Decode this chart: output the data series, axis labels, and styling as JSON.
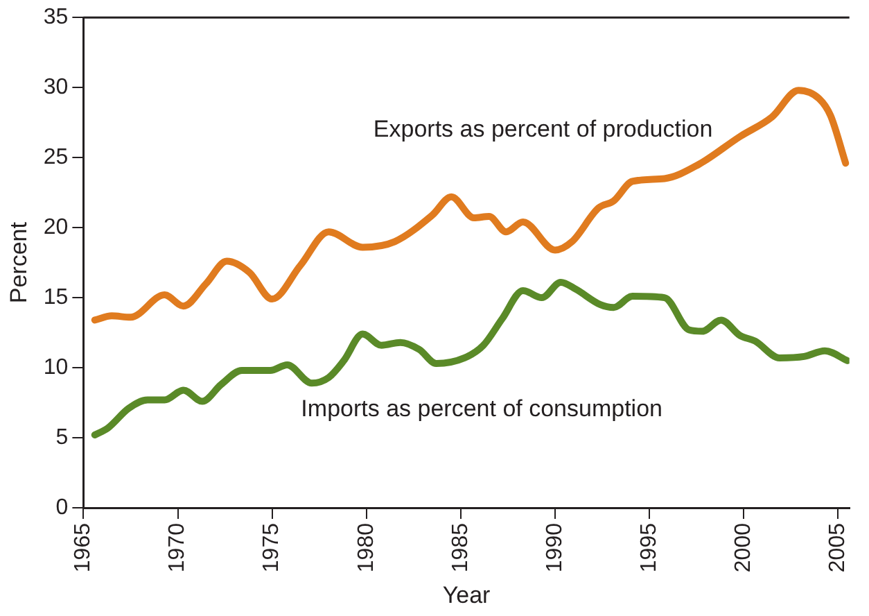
{
  "chart_data": {
    "type": "line",
    "xlabel": "Year",
    "ylabel": "Percent",
    "xlim": [
      1965,
      2005.6
    ],
    "xticks": [
      1965,
      1970,
      1975,
      1980,
      1985,
      1990,
      1995,
      2000,
      2005
    ],
    "ylim": [
      0,
      35
    ],
    "yticks": [
      0,
      5,
      10,
      15,
      20,
      25,
      30,
      35
    ],
    "grid": false,
    "legend": false,
    "marker": "none",
    "line_style": "solid",
    "series": [
      {
        "name": "Exports as percent of production",
        "color": "#e07b1f",
        "x": [
          1965.6,
          1966.5,
          1967.5,
          1969.3,
          1970.3,
          1971.5,
          1972.6,
          1973.8,
          1975,
          1976.5,
          1978,
          1979.8,
          1981.5,
          1983.5,
          1984.5,
          1985.7,
          1986.5,
          1987.4,
          1988.3,
          1990,
          1990.9,
          1992.3,
          1993.1,
          1994.1,
          1995.8,
          1997.6,
          1999.8,
          2001.5,
          2002.9,
          2004,
          2004.6,
          2005.4
        ],
        "values": [
          13.4,
          13.7,
          13.6,
          15.2,
          14.4,
          16,
          17.6,
          16.8,
          14.9,
          17.3,
          19.7,
          18.6,
          19,
          20.9,
          22.2,
          20.7,
          20.8,
          19.7,
          20.4,
          18.4,
          19,
          21.4,
          21.9,
          23.3,
          23.5,
          24.5,
          26.5,
          27.9,
          29.8,
          29.2,
          28,
          24.6
        ]
      },
      {
        "name": "Imports as percent of consumption",
        "color": "#5a8a28",
        "x": [
          1965.6,
          1966.3,
          1967.4,
          1968.4,
          1969.3,
          1970.3,
          1971.3,
          1972.3,
          1973.4,
          1974.9,
          1975.8,
          1977.1,
          1978,
          1978.8,
          1979.8,
          1980.8,
          1981.8,
          1982.8,
          1983.7,
          1985.2,
          1986.2,
          1987.2,
          1988.3,
          1989.3,
          1990.3,
          1991.1,
          1992.4,
          1993.1,
          1994.1,
          1995.8,
          1997.1,
          1997.8,
          1998.8,
          1999.8,
          2000.6,
          2001.9,
          2003.2,
          2004.3,
          2005.5
        ],
        "values": [
          5.2,
          5.7,
          7.1,
          7.7,
          7.7,
          8.4,
          7.6,
          8.8,
          9.8,
          9.8,
          10.2,
          8.9,
          9.3,
          10.5,
          12.4,
          11.6,
          11.8,
          11.3,
          10.3,
          10.7,
          11.6,
          13.5,
          15.5,
          15,
          16.1,
          15.6,
          14.5,
          14.3,
          15.1,
          15,
          12.7,
          12.6,
          13.4,
          12.3,
          11.9,
          10.7,
          10.8,
          11.2,
          10.5
        ]
      }
    ]
  }
}
